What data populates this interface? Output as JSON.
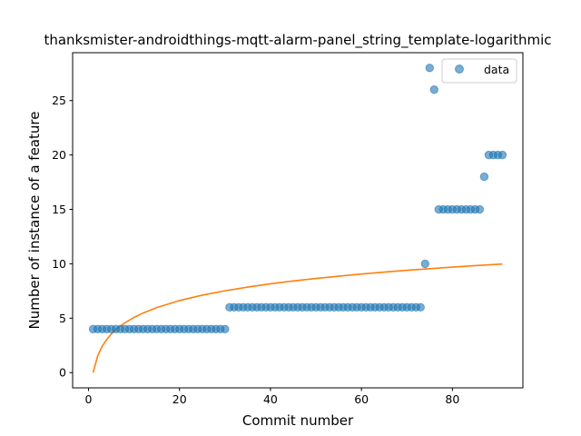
{
  "chart_data": {
    "type": "scatter",
    "title": "thanksmister-androidthings-mqtt-alarm-panel_string_template-logarithmic",
    "xlabel": "Commit number",
    "ylabel": "Number of instance of a feature",
    "xlim": [
      -3.5,
      95.5
    ],
    "ylim": [
      -1.4,
      29.4
    ],
    "xticks": [
      0,
      20,
      40,
      60,
      80
    ],
    "yticks": [
      0,
      5,
      10,
      15,
      20,
      25
    ],
    "grid": false,
    "legend_position": "top-right",
    "series": [
      {
        "name": "data",
        "kind": "scatter",
        "color": "#1f77b4",
        "x": [
          1,
          2,
          3,
          4,
          5,
          6,
          7,
          8,
          9,
          10,
          11,
          12,
          13,
          14,
          15,
          16,
          17,
          18,
          19,
          20,
          21,
          22,
          23,
          24,
          25,
          26,
          27,
          28,
          29,
          30,
          31,
          32,
          33,
          34,
          35,
          36,
          37,
          38,
          39,
          40,
          41,
          42,
          43,
          44,
          45,
          46,
          47,
          48,
          49,
          50,
          51,
          52,
          53,
          54,
          55,
          56,
          57,
          58,
          59,
          60,
          61,
          62,
          63,
          64,
          65,
          66,
          67,
          68,
          69,
          70,
          71,
          72,
          73,
          74,
          75,
          76,
          77,
          78,
          79,
          80,
          81,
          82,
          83,
          84,
          85,
          86,
          87,
          88,
          89,
          90,
          91
        ],
        "y": [
          4,
          4,
          4,
          4,
          4,
          4,
          4,
          4,
          4,
          4,
          4,
          4,
          4,
          4,
          4,
          4,
          4,
          4,
          4,
          4,
          4,
          4,
          4,
          4,
          4,
          4,
          4,
          4,
          4,
          4,
          6,
          6,
          6,
          6,
          6,
          6,
          6,
          6,
          6,
          6,
          6,
          6,
          6,
          6,
          6,
          6,
          6,
          6,
          6,
          6,
          6,
          6,
          6,
          6,
          6,
          6,
          6,
          6,
          6,
          6,
          6,
          6,
          6,
          6,
          6,
          6,
          6,
          6,
          6,
          6,
          6,
          6,
          6,
          10,
          28,
          26,
          15,
          15,
          15,
          15,
          15,
          15,
          15,
          15,
          15,
          15,
          18,
          20,
          20,
          20,
          20
        ]
      },
      {
        "kind": "line",
        "color": "#ff7f0e",
        "x": [
          1,
          2,
          3,
          4,
          5,
          6,
          8,
          10,
          12,
          15,
          20,
          25,
          30,
          35,
          40,
          45,
          50,
          55,
          60,
          65,
          70,
          75,
          80,
          85,
          91
        ],
        "y": [
          0.0,
          1.53,
          2.42,
          3.05,
          3.54,
          3.94,
          4.58,
          5.07,
          5.48,
          5.98,
          6.62,
          7.12,
          7.52,
          7.86,
          8.16,
          8.42,
          8.65,
          8.86,
          9.06,
          9.24,
          9.4,
          9.55,
          9.7,
          9.83,
          9.98
        ]
      }
    ]
  }
}
